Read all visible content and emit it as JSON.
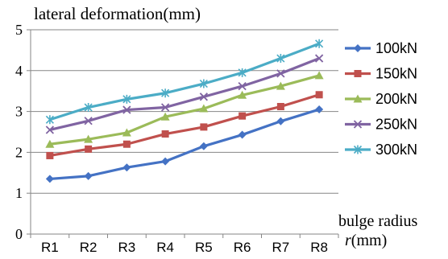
{
  "chart_data": {
    "type": "line",
    "title": "lateral deformation(mm)",
    "xlabel_line1": "bulge radius",
    "xlabel_line2_var": "r",
    "xlabel_line2_unit": "(mm)",
    "categories": [
      "R1",
      "R2",
      "R3",
      "R4",
      "R5",
      "R6",
      "R7",
      "R8"
    ],
    "ylim": [
      0,
      5
    ],
    "yticks": [
      0,
      1,
      2,
      3,
      4,
      5
    ],
    "grid": true,
    "legend": "right",
    "series": [
      {
        "name": "100kN",
        "color": "#4472C4",
        "marker": "diamond",
        "values": [
          1.35,
          1.42,
          1.63,
          1.78,
          2.15,
          2.43,
          2.76,
          3.05
        ]
      },
      {
        "name": "150kN",
        "color": "#C0504D",
        "marker": "square",
        "values": [
          1.92,
          2.08,
          2.2,
          2.45,
          2.62,
          2.89,
          3.12,
          3.41
        ]
      },
      {
        "name": "200kN",
        "color": "#9BBB59",
        "marker": "triangle",
        "values": [
          2.2,
          2.32,
          2.48,
          2.87,
          3.07,
          3.4,
          3.62,
          3.88
        ]
      },
      {
        "name": "250kN",
        "color": "#8064A2",
        "marker": "x",
        "values": [
          2.55,
          2.77,
          3.04,
          3.1,
          3.36,
          3.62,
          3.93,
          4.3
        ]
      },
      {
        "name": "300kN",
        "color": "#4BACC6",
        "marker": "star",
        "values": [
          2.8,
          3.1,
          3.3,
          3.45,
          3.68,
          3.95,
          4.3,
          4.66
        ]
      }
    ]
  }
}
